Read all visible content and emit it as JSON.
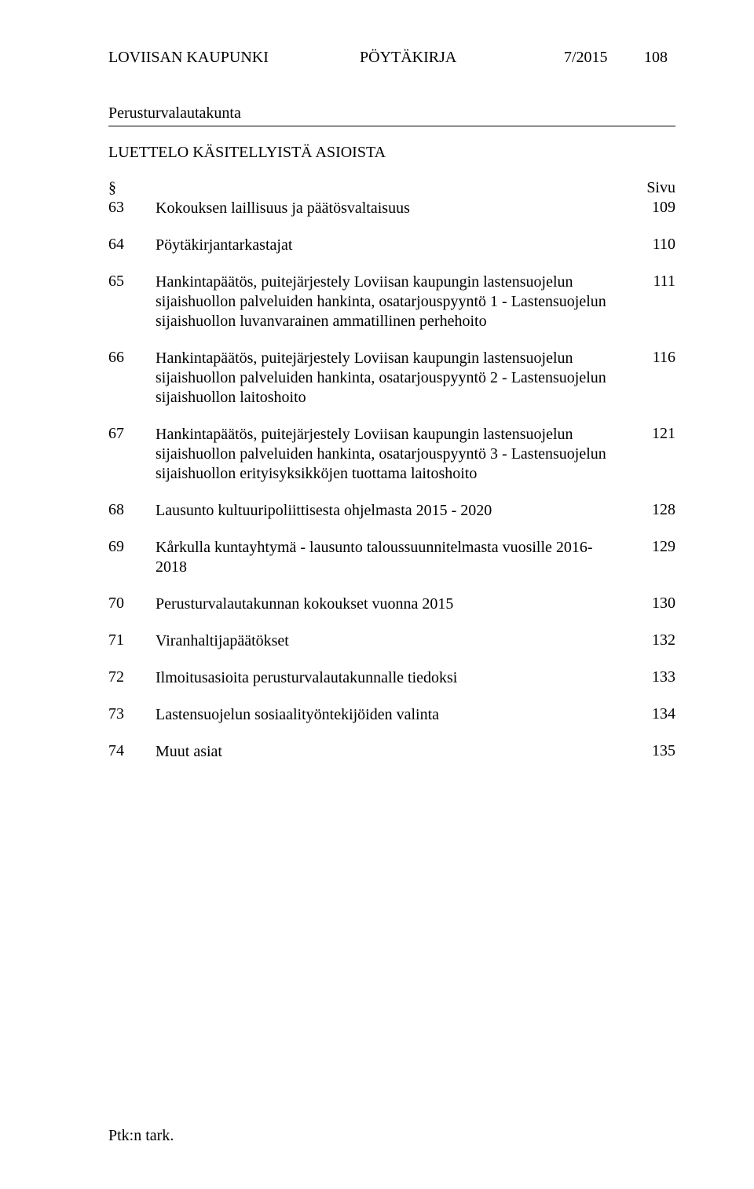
{
  "header": {
    "organization": "LOVIISAN KAUPUNKI",
    "doc_type": "PÖYTÄKIRJA",
    "issue": "7/2015",
    "page_number": "108"
  },
  "committee": "Perusturvalautakunta",
  "toc_title": "LUETTELO KÄSITELLYISTÄ  ASIOISTA",
  "toc_header": {
    "symbol": "§",
    "page_label": "Sivu"
  },
  "items": [
    {
      "num": "63",
      "title": "Kokouksen laillisuus ja päätösvaltaisuus",
      "page": "109"
    },
    {
      "num": "64",
      "title": "Pöytäkirjantarkastajat",
      "page": "110"
    },
    {
      "num": "65",
      "title": "Hankintapäätös, puitejärjestely Loviisan kaupungin lastensuojelun sijaishuollon palveluiden hankinta, osatarjouspyyntö 1 - Lastensuojelun sijaishuollon luvanvarainen ammatillinen perhehoito",
      "page": "111"
    },
    {
      "num": "66",
      "title": "Hankintapäätös, puitejärjestely Loviisan kaupungin lastensuojelun sijaishuollon palveluiden hankinta, osatarjouspyyntö 2 - Lastensuojelun sijaishuollon laitoshoito",
      "page": "116"
    },
    {
      "num": "67",
      "title": "Hankintapäätös, puitejärjestely Loviisan kaupungin lastensuojelun sijaishuollon palveluiden hankinta, osatarjouspyyntö 3 - Lastensuojelun sijaishuollon erityisyksikköjen tuottama laitoshoito",
      "page": "121"
    },
    {
      "num": "68",
      "title": "Lausunto kultuuripoliittisesta ohjelmasta 2015 - 2020",
      "page": "128"
    },
    {
      "num": "69",
      "title": "Kårkulla kuntayhtymä - lausunto taloussuunnitelmasta vuosille 2016-2018",
      "page": "129"
    },
    {
      "num": "70",
      "title": "Perusturvalautakunnan kokoukset vuonna 2015",
      "page": "130"
    },
    {
      "num": "71",
      "title": "Viranhaltijapäätökset",
      "page": "132"
    },
    {
      "num": "72",
      "title": "Ilmoitusasioita perusturvalautakunnalle tiedoksi",
      "page": "133"
    },
    {
      "num": "73",
      "title": "Lastensuojelun sosiaalityöntekijöiden valinta",
      "page": "134"
    },
    {
      "num": "74",
      "title": "Muut asiat",
      "page": "135"
    }
  ],
  "footer": "Ptk:n tark."
}
